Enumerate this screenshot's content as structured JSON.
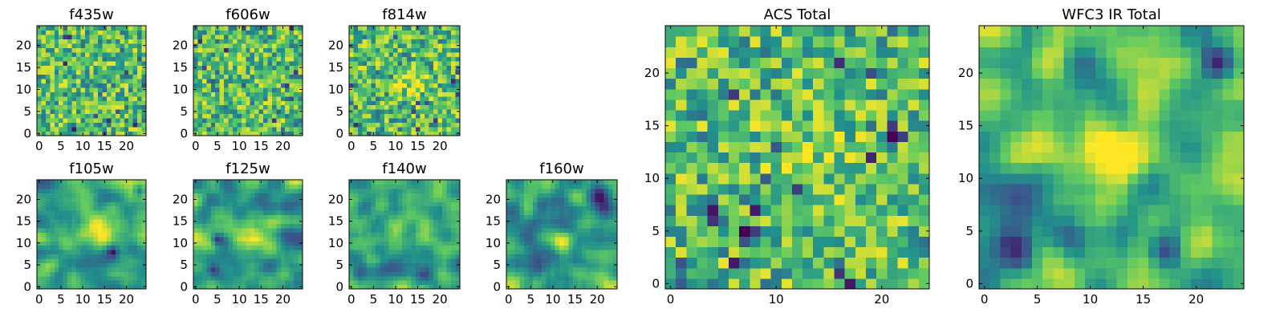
{
  "colors": {
    "background": "#ffffff",
    "axis_frame": "#000000",
    "viridis_stops": [
      "#440154",
      "#3b528b",
      "#21918c",
      "#5ec962",
      "#fde725"
    ]
  },
  "chart_data": [
    {
      "type": "heatmap",
      "title": "f435w",
      "colormap": "viridis",
      "grid": false,
      "xlim": [
        -0.5,
        24.5
      ],
      "ylim": [
        -0.5,
        24.5
      ],
      "xticks": [
        0,
        5,
        10,
        15,
        20
      ],
      "xtick_labels": [
        "0",
        "5",
        "10",
        "15",
        "20"
      ],
      "yticks": [
        0,
        5,
        10,
        15,
        20
      ],
      "ytick_labels": [
        "0",
        "5",
        "10",
        "15",
        "20"
      ],
      "shape": [
        25,
        25
      ],
      "value_scale": "normalized 0-1",
      "texture": "pixel noise",
      "features": []
    },
    {
      "type": "heatmap",
      "title": "f606w",
      "colormap": "viridis",
      "grid": false,
      "xlim": [
        -0.5,
        24.5
      ],
      "ylim": [
        -0.5,
        24.5
      ],
      "xticks": [
        0,
        5,
        10,
        15,
        20
      ],
      "xtick_labels": [
        "0",
        "5",
        "10",
        "15",
        "20"
      ],
      "yticks": [
        0,
        5,
        10,
        15,
        20
      ],
      "ytick_labels": [
        "0",
        "5",
        "10",
        "15",
        "20"
      ],
      "shape": [
        25,
        25
      ],
      "value_scale": "normalized 0-1",
      "texture": "pixel noise",
      "features": []
    },
    {
      "type": "heatmap",
      "title": "f814w",
      "colormap": "viridis",
      "grid": false,
      "xlim": [
        -0.5,
        24.5
      ],
      "ylim": [
        -0.5,
        24.5
      ],
      "xticks": [
        0,
        5,
        10,
        15,
        20
      ],
      "xtick_labels": [
        "0",
        "5",
        "10",
        "15",
        "20"
      ],
      "yticks": [
        0,
        5,
        10,
        15,
        20
      ],
      "ytick_labels": [
        "0",
        "5",
        "10",
        "15",
        "20"
      ],
      "shape": [
        25,
        25
      ],
      "value_scale": "normalized 0-1",
      "texture": "pixel noise",
      "features": [
        {
          "x": 14,
          "y": 11,
          "radius": 2.2,
          "level": 0.25
        }
      ]
    },
    {
      "type": "heatmap",
      "title": "f105w",
      "colormap": "viridis",
      "grid": false,
      "xlim": [
        -0.5,
        24.5
      ],
      "ylim": [
        -0.5,
        24.5
      ],
      "xticks": [
        0,
        5,
        10,
        15,
        20
      ],
      "xtick_labels": [
        "0",
        "5",
        "10",
        "15",
        "20"
      ],
      "yticks": [
        0,
        5,
        10,
        15,
        20
      ],
      "ytick_labels": [
        "0",
        "5",
        "10",
        "15",
        "20"
      ],
      "shape": [
        25,
        25
      ],
      "value_scale": "normalized 0-1",
      "texture": "smooth",
      "features": [
        {
          "x": 12,
          "y": 12,
          "radius": 3,
          "level": 0.3
        },
        {
          "x": 17,
          "y": 8,
          "radius": 1,
          "level": -0.5
        },
        {
          "x": 23,
          "y": 22,
          "radius": 1,
          "level": -0.5
        }
      ]
    },
    {
      "type": "heatmap",
      "title": "f125w",
      "colormap": "viridis",
      "grid": false,
      "xlim": [
        -0.5,
        24.5
      ],
      "ylim": [
        -0.5,
        24.5
      ],
      "xticks": [
        0,
        5,
        10,
        15,
        20
      ],
      "xtick_labels": [
        "0",
        "5",
        "10",
        "15",
        "20"
      ],
      "yticks": [
        0,
        5,
        10,
        15,
        20
      ],
      "ytick_labels": [
        "0",
        "5",
        "10",
        "15",
        "20"
      ],
      "shape": [
        25,
        25
      ],
      "value_scale": "normalized 0-1",
      "texture": "smooth",
      "features": [
        {
          "x": 12,
          "y": 12,
          "radius": 3,
          "level": 0.3
        },
        {
          "x": 5,
          "y": 11,
          "radius": 1,
          "level": -0.5
        },
        {
          "x": 4,
          "y": 4,
          "radius": 1,
          "level": -0.4
        }
      ]
    },
    {
      "type": "heatmap",
      "title": "f140w",
      "colormap": "viridis",
      "grid": false,
      "xlim": [
        -0.5,
        24.5
      ],
      "ylim": [
        -0.5,
        24.5
      ],
      "xticks": [
        0,
        5,
        10,
        15,
        20
      ],
      "xtick_labels": [
        "0",
        "5",
        "10",
        "15",
        "20"
      ],
      "yticks": [
        0,
        5,
        10,
        15,
        20
      ],
      "ytick_labels": [
        "0",
        "5",
        "10",
        "15",
        "20"
      ],
      "shape": [
        25,
        25
      ],
      "value_scale": "normalized 0-1",
      "texture": "smooth",
      "features": [
        {
          "x": 13,
          "y": 13,
          "radius": 3,
          "level": 0.3
        },
        {
          "x": 2,
          "y": 3,
          "radius": 1.5,
          "level": -0.5
        },
        {
          "x": 16,
          "y": 2,
          "radius": 2,
          "level": -0.4
        }
      ]
    },
    {
      "type": "heatmap",
      "title": "f160w",
      "colormap": "viridis",
      "grid": false,
      "xlim": [
        -0.5,
        24.5
      ],
      "ylim": [
        -0.5,
        24.5
      ],
      "xticks": [
        0,
        5,
        10,
        15,
        20
      ],
      "xtick_labels": [
        "0",
        "5",
        "10",
        "15",
        "20"
      ],
      "yticks": [
        0,
        5,
        10,
        15,
        20
      ],
      "ytick_labels": [
        "0",
        "5",
        "10",
        "15",
        "20"
      ],
      "shape": [
        25,
        25
      ],
      "value_scale": "normalized 0-1",
      "texture": "smooth",
      "features": [
        {
          "x": 12,
          "y": 12,
          "radius": 2.5,
          "level": 0.35
        },
        {
          "x": 11,
          "y": 15,
          "radius": 4,
          "level": -0.3
        },
        {
          "x": 21,
          "y": 20,
          "radius": 2,
          "level": -0.45
        }
      ]
    },
    {
      "type": "heatmap",
      "title": "ACS Total",
      "colormap": "viridis",
      "grid": false,
      "xlim": [
        -0.5,
        24.5
      ],
      "ylim": [
        -0.5,
        24.5
      ],
      "xticks": [
        0,
        10,
        20
      ],
      "xtick_labels": [
        "0",
        "10",
        "20"
      ],
      "yticks": [
        0,
        5,
        10,
        15,
        20
      ],
      "ytick_labels": [
        "0",
        "5",
        "10",
        "15",
        "20"
      ],
      "shape": [
        25,
        25
      ],
      "value_scale": "normalized 0-1",
      "texture": "pixel noise",
      "features": [
        {
          "x": 13,
          "y": 13,
          "radius": 2.5,
          "level": 0.2
        },
        {
          "x": 16,
          "y": 21,
          "radius": 0.6,
          "level": -0.8
        },
        {
          "x": 7,
          "y": 5,
          "radius": 0.6,
          "level": -0.8
        },
        {
          "x": 4,
          "y": 7,
          "radius": 0.6,
          "level": -0.8
        },
        {
          "x": 21,
          "y": 14,
          "radius": 0.6,
          "level": -0.8
        }
      ]
    },
    {
      "type": "heatmap",
      "title": "WFC3 IR Total",
      "colormap": "viridis",
      "grid": false,
      "xlim": [
        -0.5,
        24.5
      ],
      "ylim": [
        -0.5,
        24.5
      ],
      "xticks": [
        0,
        5,
        10,
        15,
        20
      ],
      "xtick_labels": [
        "0",
        "5",
        "10",
        "15",
        "20"
      ],
      "yticks": [
        0,
        5,
        10,
        15,
        20
      ],
      "ytick_labels": [
        "0",
        "5",
        "10",
        "15",
        "20"
      ],
      "shape": [
        25,
        25
      ],
      "value_scale": "normalized 0-1",
      "texture": "smooth",
      "features": [
        {
          "x": 12,
          "y": 12,
          "radius": 2.2,
          "level": 0.4
        },
        {
          "x": 22,
          "y": 21,
          "radius": 1.2,
          "level": -0.6
        },
        {
          "x": 3,
          "y": 3,
          "radius": 1.5,
          "level": -0.5
        },
        {
          "x": 17,
          "y": 3,
          "radius": 1.2,
          "level": -0.5
        }
      ]
    }
  ]
}
